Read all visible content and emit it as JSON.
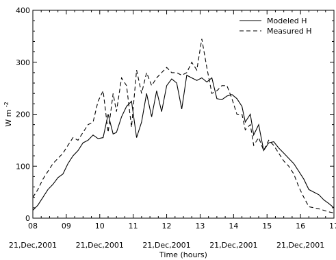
{
  "chart_data": {
    "type": "line",
    "xlabel": "Time (hours)",
    "ylabel_main": "W m",
    "ylabel_sup": "-2",
    "xlim": [
      8,
      17
    ],
    "ylim": [
      0,
      400
    ],
    "x_ticks": [
      "08",
      "09",
      "10",
      "11",
      "12",
      "13",
      "14",
      "15",
      "16",
      "17"
    ],
    "y_ticks": [
      "0",
      "100",
      "200",
      "300",
      "400"
    ],
    "date_labels": [
      "21,Dec,2001",
      "21,Dec,2001",
      "21,Dec,2001",
      "21,Dec,2001",
      "21,Dec,2001"
    ],
    "date_label_x": [
      8,
      10,
      12,
      14,
      16
    ],
    "legend_position": "top-right",
    "series": [
      {
        "name": "Modeled H",
        "style": "solid",
        "color": "#000000",
        "x": [
          8.0,
          8.15,
          8.3,
          8.45,
          8.6,
          8.75,
          8.9,
          9.05,
          9.2,
          9.35,
          9.5,
          9.65,
          9.8,
          9.95,
          10.1,
          10.25,
          10.4,
          10.5,
          10.65,
          10.8,
          10.95,
          11.1,
          11.25,
          11.4,
          11.55,
          11.7,
          11.85,
          12.0,
          12.15,
          12.3,
          12.45,
          12.6,
          12.75,
          12.9,
          13.05,
          13.2,
          13.35,
          13.5,
          13.65,
          13.8,
          13.95,
          14.1,
          14.25,
          14.35,
          14.5,
          14.6,
          14.75,
          14.9,
          15.05,
          15.2,
          15.35,
          15.5,
          15.65,
          15.8,
          15.95,
          16.1,
          16.25,
          16.4,
          16.55,
          16.7,
          16.85,
          17.0
        ],
        "y": [
          15,
          25,
          40,
          55,
          65,
          78,
          85,
          105,
          120,
          130,
          145,
          150,
          160,
          153,
          155,
          200,
          162,
          165,
          195,
          215,
          225,
          155,
          185,
          240,
          195,
          245,
          205,
          255,
          268,
          260,
          210,
          275,
          270,
          265,
          270,
          262,
          270,
          230,
          228,
          235,
          238,
          230,
          215,
          185,
          200,
          160,
          180,
          130,
          145,
          147,
          135,
          125,
          115,
          105,
          90,
          75,
          55,
          50,
          45,
          35,
          28,
          20
        ]
      },
      {
        "name": "Measured H",
        "style": "dashed",
        "color": "#000000",
        "x": [
          8.0,
          8.15,
          8.3,
          8.45,
          8.6,
          8.75,
          8.9,
          9.05,
          9.2,
          9.35,
          9.5,
          9.65,
          9.8,
          9.95,
          10.1,
          10.25,
          10.4,
          10.5,
          10.65,
          10.8,
          10.95,
          11.1,
          11.25,
          11.4,
          11.55,
          11.7,
          11.85,
          12.0,
          12.15,
          12.3,
          12.45,
          12.6,
          12.75,
          12.9,
          13.05,
          13.2,
          13.35,
          13.5,
          13.65,
          13.8,
          13.95,
          14.1,
          14.25,
          14.35,
          14.5,
          14.6,
          14.75,
          14.9,
          15.05,
          15.2,
          15.35,
          15.5,
          15.65,
          15.8,
          15.95,
          16.1,
          16.25,
          16.4,
          16.55,
          16.7,
          16.85,
          17.0
        ],
        "y": [
          40,
          55,
          75,
          90,
          105,
          115,
          125,
          140,
          155,
          150,
          165,
          180,
          185,
          225,
          245,
          165,
          240,
          205,
          270,
          255,
          175,
          285,
          240,
          280,
          255,
          270,
          280,
          290,
          280,
          280,
          275,
          280,
          300,
          285,
          345,
          290,
          240,
          245,
          255,
          255,
          230,
          200,
          200,
          170,
          180,
          140,
          155,
          130,
          150,
          140,
          125,
          110,
          100,
          85,
          60,
          40,
          22,
          20,
          18,
          15,
          12,
          10
        ]
      }
    ]
  }
}
